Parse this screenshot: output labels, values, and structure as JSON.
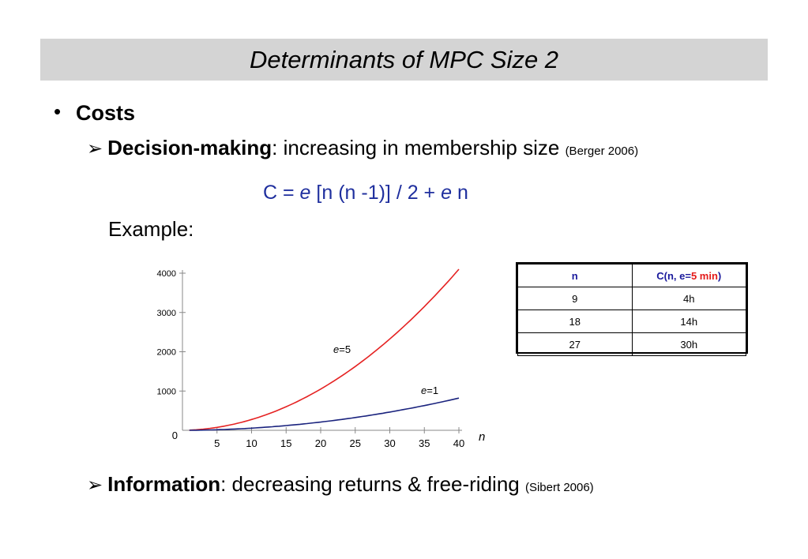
{
  "slide": {
    "title": "Determinants of MPC Size 2",
    "bullet": "•",
    "heading": "Costs",
    "decision": {
      "arrow": "➢",
      "label": "Decision-making",
      "text": ": increasing in membership size ",
      "cite": "(Berger 2006)"
    },
    "formula": {
      "part1": "C = ",
      "e1": "e",
      "part2": " [n (n -1)] / 2 + ",
      "e2": "e",
      "part3": " n"
    },
    "example": "Example:",
    "information": {
      "arrow": "➢",
      "label": "Information",
      "text": ": decreasing returns & free-riding ",
      "cite": "(Sibert 2006)"
    }
  },
  "table": {
    "header_n": "n",
    "header_c_prefix": "C(n, e=",
    "header_c_red": "5 min",
    "header_c_suffix": ")",
    "rows": [
      {
        "n": "9",
        "c": "4h"
      },
      {
        "n": "18",
        "c": "14h"
      },
      {
        "n": "27",
        "c": "30h"
      }
    ]
  },
  "chart_data": {
    "type": "line",
    "xlabel": "n",
    "ylabel": "",
    "xlim": [
      1,
      40
    ],
    "ylim": [
      0,
      4000
    ],
    "x_ticks": [
      "5",
      "10",
      "15",
      "20",
      "25",
      "30",
      "35",
      "40"
    ],
    "y_ticks": [
      "0",
      "1000",
      "2000",
      "3000",
      "4000"
    ],
    "series": [
      {
        "name": "e=5",
        "label_e": "e",
        "label_rest": "=5",
        "e": 5,
        "color": "#e52222",
        "formula": "e*n*(n-1)/2 + e*n",
        "values": [
          [
            1,
            5
          ],
          [
            5,
            75
          ],
          [
            10,
            275
          ],
          [
            15,
            600
          ],
          [
            20,
            1050
          ],
          [
            25,
            1625
          ],
          [
            30,
            2325
          ],
          [
            35,
            3150
          ],
          [
            40,
            4100
          ]
        ]
      },
      {
        "name": "e=1",
        "label_e": "e",
        "label_rest": "=1",
        "e": 1,
        "color": "#1a237e",
        "formula": "e*n*(n-1)/2 + e*n",
        "values": [
          [
            1,
            1
          ],
          [
            5,
            15
          ],
          [
            10,
            55
          ],
          [
            15,
            120
          ],
          [
            20,
            210
          ],
          [
            25,
            325
          ],
          [
            30,
            465
          ],
          [
            35,
            630
          ],
          [
            40,
            820
          ]
        ]
      }
    ],
    "grid": false,
    "legend": "inline labels"
  }
}
